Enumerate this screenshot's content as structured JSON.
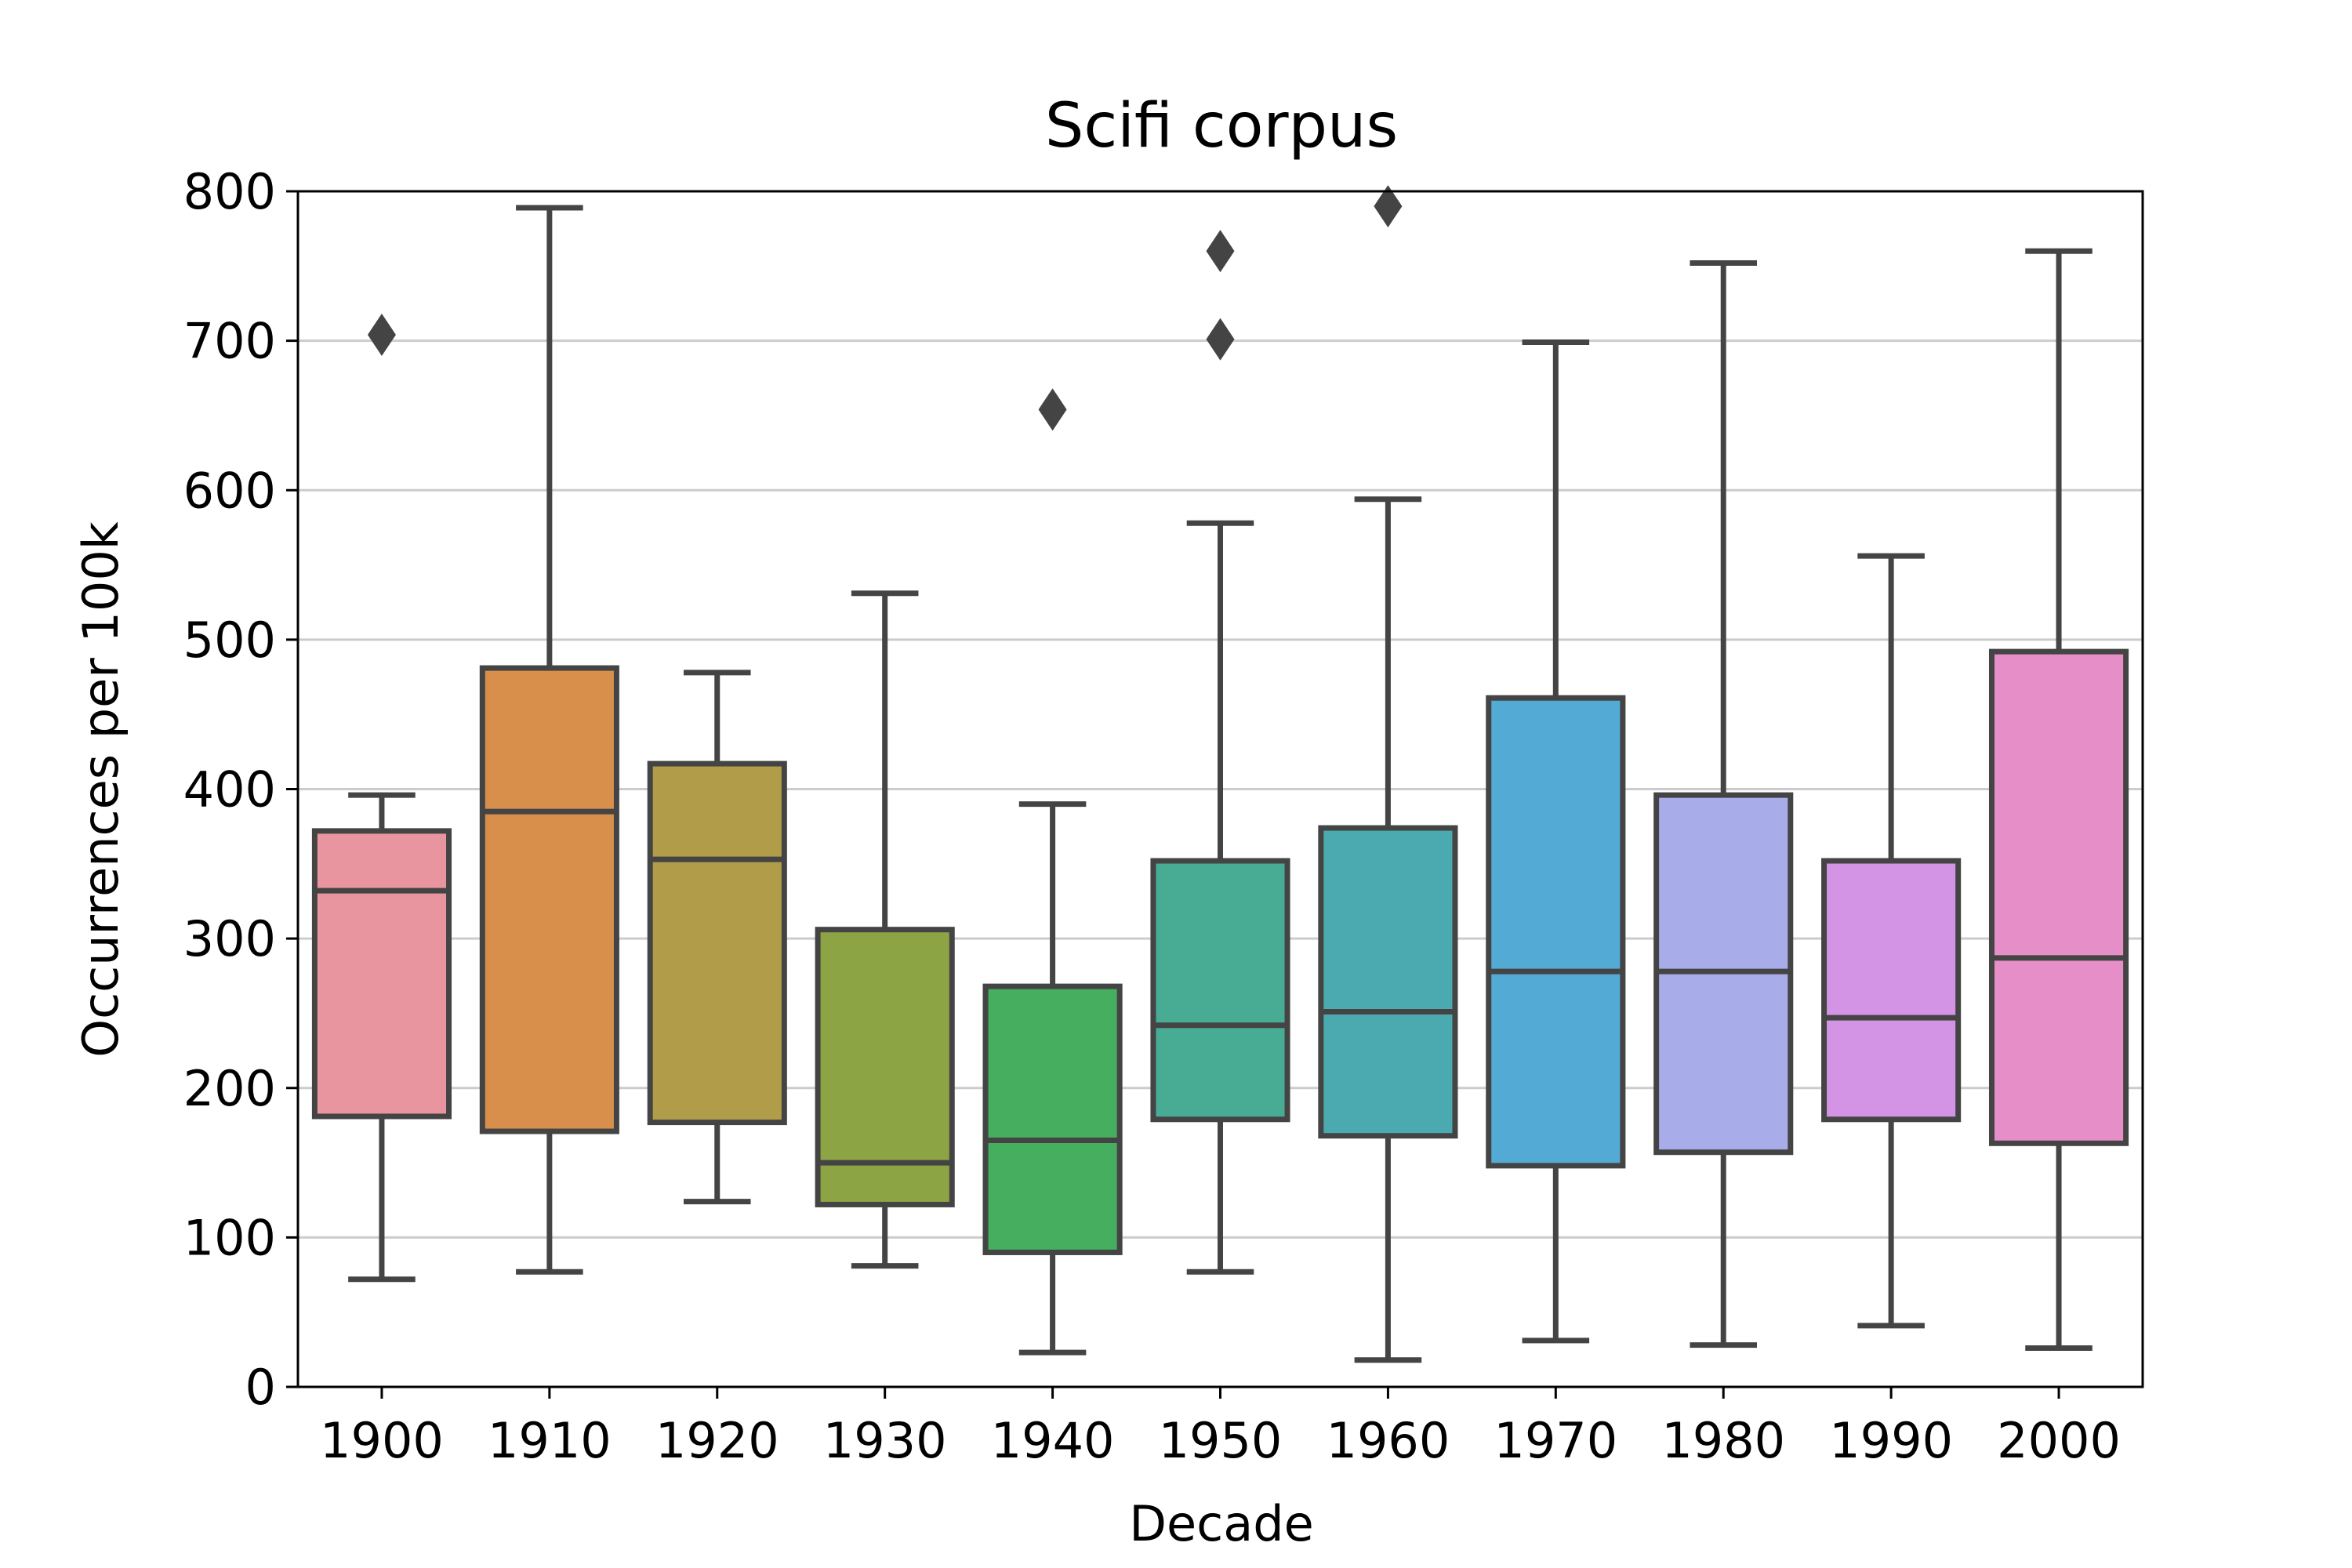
{
  "chart_data": {
    "type": "box",
    "title": "Scifi corpus",
    "xlabel": "Decade",
    "ylabel": "Occurrences per 100k",
    "ylim": [
      0,
      800
    ],
    "yticks": [
      0,
      100,
      200,
      300,
      400,
      500,
      600,
      700,
      800
    ],
    "grid": "horizontal",
    "categories": [
      "1900",
      "1910",
      "1920",
      "1930",
      "1940",
      "1950",
      "1960",
      "1970",
      "1980",
      "1990",
      "2000"
    ],
    "boxes": [
      {
        "decade": "1900",
        "whisker_low": 72,
        "q1": 181,
        "median": 332,
        "q3": 372,
        "whisker_high": 396,
        "outliers": [
          704
        ],
        "color": "#e8959f"
      },
      {
        "decade": "1910",
        "whisker_low": 77,
        "q1": 171,
        "median": 385,
        "q3": 481,
        "whisker_high": 789,
        "outliers": [],
        "color": "#d98f4c"
      },
      {
        "decade": "1920",
        "whisker_low": 124,
        "q1": 177,
        "median": 353,
        "q3": 417,
        "whisker_high": 478,
        "outliers": [],
        "color": "#b19c49"
      },
      {
        "decade": "1930",
        "whisker_low": 81,
        "q1": 122,
        "median": 150,
        "q3": 306,
        "whisker_high": 531,
        "outliers": [],
        "color": "#8da444"
      },
      {
        "decade": "1940",
        "whisker_low": 23,
        "q1": 90,
        "median": 165,
        "q3": 268,
        "whisker_high": 390,
        "outliers": [
          654
        ],
        "color": "#45ae5f"
      },
      {
        "decade": "1950",
        "whisker_low": 77,
        "q1": 179,
        "median": 242,
        "q3": 352,
        "whisker_high": 578,
        "outliers": [
          701,
          760
        ],
        "color": "#48ab94"
      },
      {
        "decade": "1960",
        "whisker_low": 18,
        "q1": 168,
        "median": 251,
        "q3": 374,
        "whisker_high": 594,
        "outliers": [
          790
        ],
        "color": "#4aaaaf"
      },
      {
        "decade": "1970",
        "whisker_low": 31,
        "q1": 148,
        "median": 278,
        "q3": 461,
        "whisker_high": 699,
        "outliers": [],
        "color": "#52aad5"
      },
      {
        "decade": "1980",
        "whisker_low": 28,
        "q1": 157,
        "median": 278,
        "q3": 396,
        "whisker_high": 752,
        "outliers": [],
        "color": "#a8adea"
      },
      {
        "decade": "1990",
        "whisker_low": 41,
        "q1": 179,
        "median": 247,
        "q3": 352,
        "whisker_high": 556,
        "outliers": [],
        "color": "#d494e6"
      },
      {
        "decade": "2000",
        "whisker_low": 26,
        "q1": 163,
        "median": 287,
        "q3": 492,
        "whisker_high": 760,
        "outliers": [],
        "color": "#e68ec8"
      }
    ]
  }
}
